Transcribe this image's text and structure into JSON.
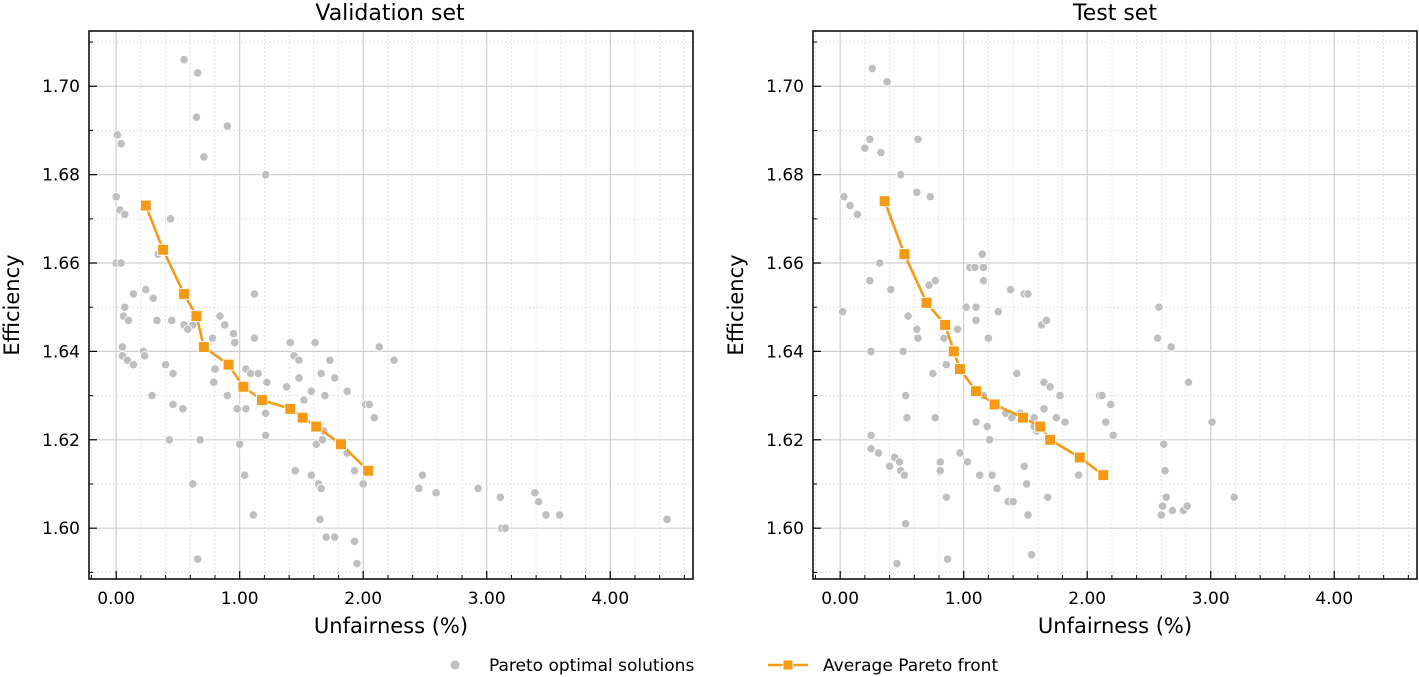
{
  "chart_data": [
    {
      "type": "scatter",
      "title": "Validation set",
      "xlabel": "Unfairness (%)",
      "ylabel": "Efficiency",
      "xlim": [
        -0.22,
        4.67
      ],
      "ylim": [
        1.5885,
        1.7125
      ],
      "xticks": [
        0,
        1,
        2,
        3,
        4
      ],
      "xtick_labels": [
        "0.00",
        "1.00",
        "2.00",
        "3.00",
        "4.00"
      ],
      "yticks": [
        1.6,
        1.62,
        1.64,
        1.66,
        1.68,
        1.7
      ],
      "ytick_labels": [
        "1.60",
        "1.62",
        "1.64",
        "1.66",
        "1.68",
        "1.70"
      ],
      "series": [
        {
          "name": "Pareto optimal solutions",
          "kind": "scatter",
          "color": "#bfbfbf",
          "points": [
            [
              0.55,
              1.706
            ],
            [
              0.66,
              1.703
            ],
            [
              0.65,
              1.693
            ],
            [
              0.9,
              1.691
            ],
            [
              0.71,
              1.684
            ],
            [
              1.21,
              1.68
            ],
            [
              0.01,
              1.689
            ],
            [
              0.04,
              1.687
            ],
            [
              0.0,
              1.675
            ],
            [
              0.03,
              1.672
            ],
            [
              0.07,
              1.671
            ],
            [
              0.44,
              1.67
            ],
            [
              0.0,
              1.66
            ],
            [
              0.04,
              1.66
            ],
            [
              0.34,
              1.662
            ],
            [
              0.14,
              1.653
            ],
            [
              0.24,
              1.654
            ],
            [
              0.3,
              1.652
            ],
            [
              1.12,
              1.653
            ],
            [
              0.07,
              1.65
            ],
            [
              0.06,
              1.648
            ],
            [
              0.1,
              1.647
            ],
            [
              0.33,
              1.647
            ],
            [
              0.45,
              1.647
            ],
            [
              0.55,
              1.646
            ],
            [
              0.62,
              1.646
            ],
            [
              0.84,
              1.648
            ],
            [
              0.58,
              1.645
            ],
            [
              0.78,
              1.643
            ],
            [
              0.88,
              1.646
            ],
            [
              0.95,
              1.644
            ],
            [
              0.96,
              1.642
            ],
            [
              1.12,
              1.643
            ],
            [
              1.41,
              1.642
            ],
            [
              1.61,
              1.642
            ],
            [
              0.05,
              1.641
            ],
            [
              0.22,
              1.64
            ],
            [
              0.05,
              1.639
            ],
            [
              0.23,
              1.639
            ],
            [
              0.09,
              1.638
            ],
            [
              0.14,
              1.637
            ],
            [
              0.4,
              1.637
            ],
            [
              0.8,
              1.636
            ],
            [
              1.05,
              1.636
            ],
            [
              1.09,
              1.635
            ],
            [
              1.15,
              1.635
            ],
            [
              1.44,
              1.639
            ],
            [
              1.48,
              1.638
            ],
            [
              1.73,
              1.638
            ],
            [
              2.13,
              1.641
            ],
            [
              2.25,
              1.638
            ],
            [
              0.46,
              1.635
            ],
            [
              0.79,
              1.633
            ],
            [
              1.22,
              1.633
            ],
            [
              1.48,
              1.634
            ],
            [
              1.66,
              1.635
            ],
            [
              1.77,
              1.634
            ],
            [
              1.38,
              1.632
            ],
            [
              1.58,
              1.631
            ],
            [
              1.69,
              1.63
            ],
            [
              1.87,
              1.631
            ],
            [
              0.29,
              1.63
            ],
            [
              0.9,
              1.63
            ],
            [
              0.98,
              1.627
            ],
            [
              1.52,
              1.629
            ],
            [
              2.02,
              1.628
            ],
            [
              2.05,
              1.628
            ],
            [
              0.46,
              1.628
            ],
            [
              0.54,
              1.627
            ],
            [
              1.05,
              1.627
            ],
            [
              1.21,
              1.626
            ],
            [
              2.09,
              1.625
            ],
            [
              1.63,
              1.623
            ],
            [
              1.68,
              1.622
            ],
            [
              1.21,
              1.621
            ],
            [
              0.43,
              1.62
            ],
            [
              0.68,
              1.62
            ],
            [
              1.0,
              1.619
            ],
            [
              1.62,
              1.619
            ],
            [
              1.67,
              1.62
            ],
            [
              1.87,
              1.617
            ],
            [
              1.45,
              1.613
            ],
            [
              1.04,
              1.612
            ],
            [
              1.58,
              1.612
            ],
            [
              1.64,
              1.61
            ],
            [
              1.66,
              1.609
            ],
            [
              1.93,
              1.613
            ],
            [
              2.0,
              1.61
            ],
            [
              2.48,
              1.612
            ],
            [
              2.45,
              1.609
            ],
            [
              2.59,
              1.608
            ],
            [
              2.93,
              1.609
            ],
            [
              0.62,
              1.61
            ],
            [
              1.11,
              1.603
            ],
            [
              1.65,
              1.602
            ],
            [
              3.11,
              1.607
            ],
            [
              3.39,
              1.608
            ],
            [
              3.42,
              1.606
            ],
            [
              3.48,
              1.603
            ],
            [
              3.59,
              1.603
            ],
            [
              4.46,
              1.602
            ],
            [
              1.7,
              1.598
            ],
            [
              1.77,
              1.598
            ],
            [
              1.93,
              1.597
            ],
            [
              3.12,
              1.6
            ],
            [
              3.15,
              1.6
            ],
            [
              0.66,
              1.593
            ],
            [
              1.95,
              1.592
            ]
          ]
        },
        {
          "name": "Average Pareto front",
          "kind": "line",
          "color": "#f59a16",
          "points": [
            [
              0.24,
              1.673
            ],
            [
              0.38,
              1.663
            ],
            [
              0.55,
              1.653
            ],
            [
              0.65,
              1.648
            ],
            [
              0.71,
              1.641
            ],
            [
              0.91,
              1.637
            ],
            [
              1.03,
              1.632
            ],
            [
              1.18,
              1.629
            ],
            [
              1.41,
              1.627
            ],
            [
              1.51,
              1.625
            ],
            [
              1.62,
              1.623
            ],
            [
              1.82,
              1.619
            ],
            [
              2.04,
              1.613
            ]
          ]
        }
      ],
      "legend": "bottom-center"
    },
    {
      "type": "scatter",
      "title": "Test set",
      "xlabel": "Unfairness (%)",
      "ylabel": "Efficiency",
      "xlim": [
        -0.22,
        4.67
      ],
      "ylim": [
        1.5885,
        1.7125
      ],
      "xticks": [
        0,
        1,
        2,
        3,
        4
      ],
      "xtick_labels": [
        "0.00",
        "1.00",
        "2.00",
        "3.00",
        "4.00"
      ],
      "yticks": [
        1.6,
        1.62,
        1.64,
        1.66,
        1.68,
        1.7
      ],
      "ytick_labels": [
        "1.60",
        "1.62",
        "1.64",
        "1.66",
        "1.68",
        "1.70"
      ],
      "series": [
        {
          "name": "Pareto optimal solutions",
          "kind": "scatter",
          "color": "#bfbfbf",
          "points": [
            [
              0.26,
              1.704
            ],
            [
              0.38,
              1.701
            ],
            [
              0.24,
              1.688
            ],
            [
              0.2,
              1.686
            ],
            [
              0.33,
              1.685
            ],
            [
              0.63,
              1.688
            ],
            [
              0.49,
              1.68
            ],
            [
              0.62,
              1.676
            ],
            [
              0.73,
              1.675
            ],
            [
              0.03,
              1.675
            ],
            [
              0.08,
              1.673
            ],
            [
              0.14,
              1.671
            ],
            [
              0.35,
              1.674
            ],
            [
              0.32,
              1.66
            ],
            [
              0.24,
              1.656
            ],
            [
              0.41,
              1.654
            ],
            [
              0.72,
              1.655
            ],
            [
              0.77,
              1.656
            ],
            [
              1.15,
              1.662
            ],
            [
              1.16,
              1.659
            ],
            [
              1.05,
              1.659
            ],
            [
              1.09,
              1.659
            ],
            [
              1.16,
              1.656
            ],
            [
              1.38,
              1.654
            ],
            [
              0.02,
              1.649
            ],
            [
              0.55,
              1.648
            ],
            [
              1.02,
              1.65
            ],
            [
              1.1,
              1.65
            ],
            [
              1.1,
              1.647
            ],
            [
              1.28,
              1.649
            ],
            [
              1.49,
              1.653
            ],
            [
              1.52,
              1.653
            ],
            [
              1.63,
              1.646
            ],
            [
              1.67,
              1.647
            ],
            [
              0.62,
              1.645
            ],
            [
              0.63,
              1.643
            ],
            [
              0.84,
              1.643
            ],
            [
              0.95,
              1.645
            ],
            [
              1.2,
              1.643
            ],
            [
              0.51,
              1.64
            ],
            [
              0.25,
              1.64
            ],
            [
              0.75,
              1.635
            ],
            [
              0.86,
              1.637
            ],
            [
              0.97,
              1.636
            ],
            [
              1.16,
              1.63
            ],
            [
              1.43,
              1.635
            ],
            [
              1.65,
              1.633
            ],
            [
              1.7,
              1.632
            ],
            [
              1.65,
              1.627
            ],
            [
              1.78,
              1.63
            ],
            [
              2.1,
              1.63
            ],
            [
              2.12,
              1.63
            ],
            [
              2.19,
              1.628
            ],
            [
              0.53,
              1.63
            ],
            [
              0.77,
              1.625
            ],
            [
              0.54,
              1.625
            ],
            [
              1.1,
              1.624
            ],
            [
              1.19,
              1.623
            ],
            [
              1.34,
              1.626
            ],
            [
              1.39,
              1.625
            ],
            [
              1.46,
              1.626
            ],
            [
              1.57,
              1.625
            ],
            [
              1.59,
              1.622
            ],
            [
              1.75,
              1.625
            ],
            [
              1.82,
              1.624
            ],
            [
              2.15,
              1.624
            ],
            [
              2.21,
              1.621
            ],
            [
              1.21,
              1.62
            ],
            [
              0.25,
              1.621
            ],
            [
              0.25,
              1.618
            ],
            [
              0.31,
              1.617
            ],
            [
              0.4,
              1.614
            ],
            [
              0.44,
              1.616
            ],
            [
              0.48,
              1.615
            ],
            [
              0.49,
              1.613
            ],
            [
              0.52,
              1.612
            ],
            [
              0.81,
              1.615
            ],
            [
              0.81,
              1.613
            ],
            [
              0.97,
              1.617
            ],
            [
              1.03,
              1.615
            ],
            [
              1.13,
              1.612
            ],
            [
              1.23,
              1.612
            ],
            [
              1.27,
              1.609
            ],
            [
              1.36,
              1.606
            ],
            [
              1.4,
              1.606
            ],
            [
              1.49,
              1.614
            ],
            [
              1.51,
              1.61
            ],
            [
              1.52,
              1.603
            ],
            [
              1.57,
              1.623
            ],
            [
              1.68,
              1.607
            ],
            [
              1.93,
              1.612
            ],
            [
              0.53,
              1.601
            ],
            [
              0.86,
              1.607
            ],
            [
              2.58,
              1.65
            ],
            [
              2.68,
              1.641
            ],
            [
              2.57,
              1.643
            ],
            [
              2.62,
              1.619
            ],
            [
              2.63,
              1.613
            ],
            [
              2.82,
              1.633
            ],
            [
              2.61,
              1.605
            ],
            [
              2.64,
              1.607
            ],
            [
              2.69,
              1.604
            ],
            [
              2.78,
              1.604
            ],
            [
              2.81,
              1.605
            ],
            [
              3.01,
              1.624
            ],
            [
              3.19,
              1.607
            ],
            [
              2.6,
              1.603
            ],
            [
              0.46,
              1.592
            ],
            [
              0.87,
              1.593
            ],
            [
              1.55,
              1.594
            ]
          ]
        },
        {
          "name": "Average Pareto front",
          "kind": "line",
          "color": "#f59a16",
          "points": [
            [
              0.36,
              1.674
            ],
            [
              0.52,
              1.662
            ],
            [
              0.7,
              1.651
            ],
            [
              0.85,
              1.646
            ],
            [
              0.92,
              1.64
            ],
            [
              0.97,
              1.636
            ],
            [
              1.1,
              1.631
            ],
            [
              1.25,
              1.628
            ],
            [
              1.48,
              1.625
            ],
            [
              1.62,
              1.623
            ],
            [
              1.7,
              1.62
            ],
            [
              1.94,
              1.616
            ],
            [
              2.13,
              1.612
            ]
          ]
        }
      ],
      "legend": "bottom-center"
    }
  ],
  "legend": {
    "items": [
      {
        "label": "Pareto optimal solutions",
        "color": "#bfbfbf",
        "kind": "dot"
      },
      {
        "label": "Average Pareto front",
        "color": "#f59a16",
        "kind": "line-square"
      }
    ]
  }
}
